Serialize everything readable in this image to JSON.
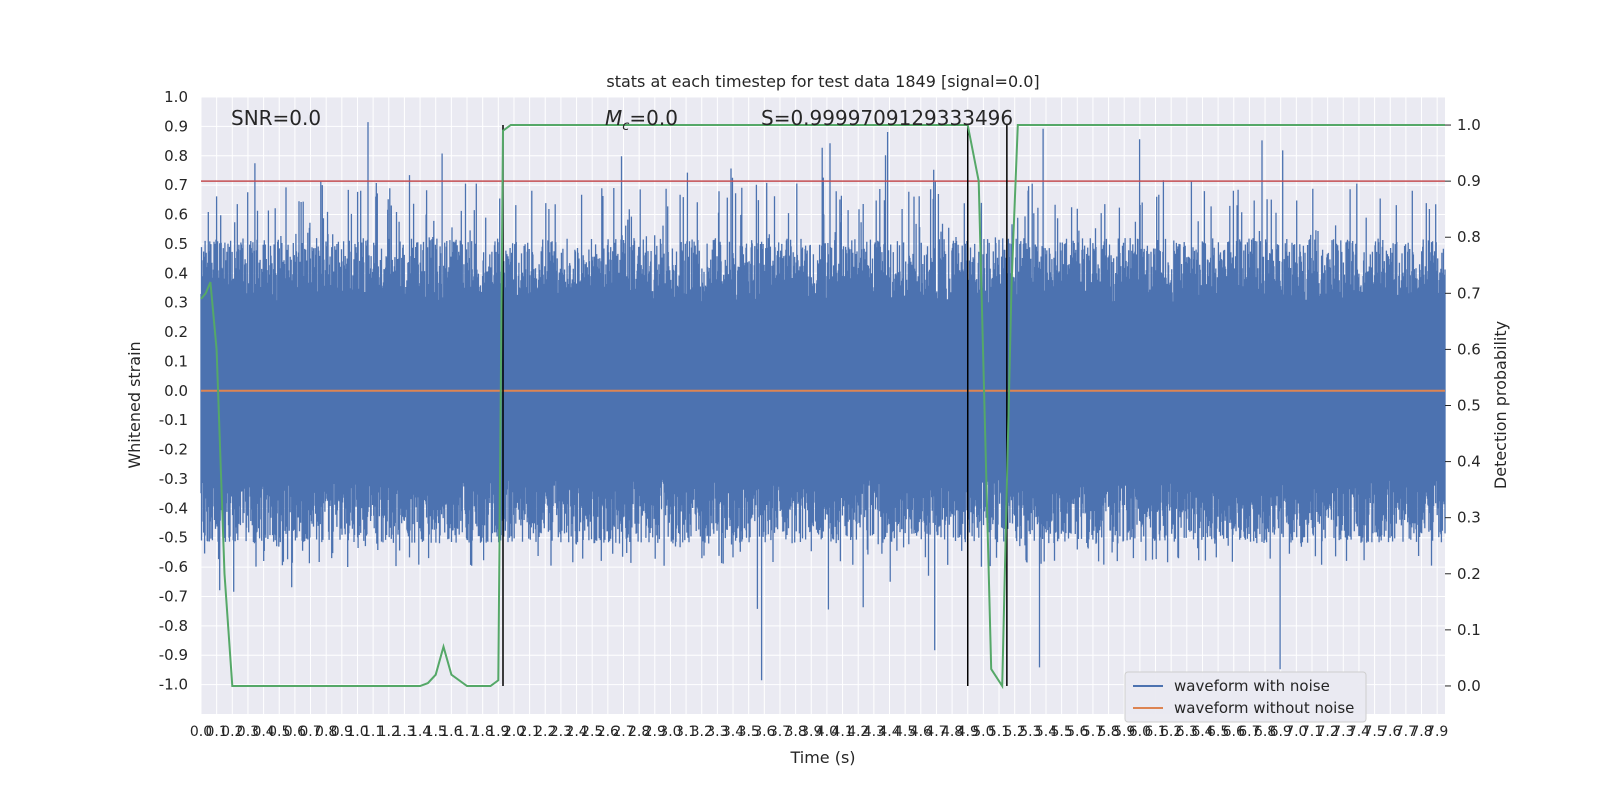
{
  "chart_data": {
    "type": "line",
    "title": "stats at each timestep for test data 1849 [signal=0.0]",
    "xlabel": "Time (s)",
    "ylabel": "Whitened strain",
    "y2label": "Detection probability",
    "xlim": [
      0.0,
      7.95
    ],
    "ylim": [
      -1.1,
      1.0
    ],
    "y2lim": [
      -0.05,
      1.05
    ],
    "grid": true,
    "x_ticks": [
      "0.0",
      "0.1",
      "0.2",
      "0.3",
      "0.4",
      "0.5",
      "0.6",
      "0.7",
      "0.8",
      "0.9",
      "1.0",
      "1.1",
      "1.2",
      "1.3",
      "1.4",
      "1.5",
      "1.6",
      "1.7",
      "1.8",
      "1.9",
      "2.0",
      "2.1",
      "2.2",
      "2.3",
      "2.4",
      "2.5",
      "2.6",
      "2.7",
      "2.8",
      "2.9",
      "3.0",
      "3.1",
      "3.2",
      "3.3",
      "3.4",
      "3.5",
      "3.6",
      "3.7",
      "3.8",
      "3.9",
      "4.0",
      "4.1",
      "4.2",
      "4.3",
      "4.4",
      "4.5",
      "4.6",
      "4.7",
      "4.8",
      "4.9",
      "5.0",
      "5.1",
      "5.2",
      "5.3",
      "5.4",
      "5.5",
      "5.6",
      "5.7",
      "5.8",
      "5.9",
      "6.0",
      "6.1",
      "6.2",
      "6.3",
      "6.4",
      "6.5",
      "6.6",
      "6.7",
      "6.8",
      "6.9",
      "7.0",
      "7.1",
      "7.2",
      "7.3",
      "7.4",
      "7.5",
      "7.6",
      "7.7",
      "7.8",
      "7.9"
    ],
    "y_ticks": [
      "1.0",
      "0.9",
      "0.8",
      "0.7",
      "0.6",
      "0.5",
      "0.4",
      "0.3",
      "0.2",
      "0.1",
      "0.0",
      "-0.1",
      "-0.2",
      "-0.3",
      "-0.4",
      "-0.5",
      "-0.6",
      "-0.7",
      "-0.8",
      "-0.9",
      "-1.0"
    ],
    "y2_ticks": [
      "1.0",
      "0.9",
      "0.8",
      "0.7",
      "0.6",
      "0.5",
      "0.4",
      "0.3",
      "0.2",
      "0.1",
      "0.0"
    ],
    "annotations": {
      "snr": "SNR=0.0",
      "mc_symbol": "M",
      "mc_sub": "c",
      "mc_value": "=0.0",
      "s": "S=0.9999709129333496"
    },
    "series": [
      {
        "name": "waveform with noise",
        "color": "#4c72b0",
        "axis": "left",
        "kind": "noise",
        "envelope_range": [
          -0.6,
          0.72
        ],
        "max_range": [
          -1.0,
          0.92
        ]
      },
      {
        "name": "waveform without noise",
        "color": "#dd8452",
        "axis": "left",
        "x": [
          0.0,
          7.95
        ],
        "y": [
          0.0,
          0.0
        ]
      },
      {
        "color": "#55a868",
        "axis": "right",
        "x": [
          0.0,
          0.03,
          0.06,
          0.1,
          0.15,
          0.2,
          0.4,
          1.4,
          1.45,
          1.5,
          1.55,
          1.6,
          1.7,
          1.85,
          1.9,
          1.93,
          1.98,
          2.03,
          4.9,
          4.97,
          5.05,
          5.12,
          5.18,
          5.22,
          5.27,
          7.95
        ],
        "y": [
          0.69,
          0.7,
          0.72,
          0.6,
          0.2,
          0.0,
          0.0,
          0.0,
          0.005,
          0.02,
          0.07,
          0.02,
          0.0,
          0.0,
          0.01,
          0.99,
          1.0,
          1.0,
          1.0,
          0.9,
          0.03,
          0.0,
          0.72,
          1.0,
          1.0,
          1.0
        ]
      }
    ],
    "threshold": {
      "color": "#c44e52",
      "axis": "right",
      "value": 0.9
    },
    "vertical_lines": [
      1.93,
      4.9,
      5.15
    ],
    "legend": {
      "placement": "lower-right",
      "entries": [
        "waveform with noise",
        "waveform without noise"
      ]
    }
  }
}
